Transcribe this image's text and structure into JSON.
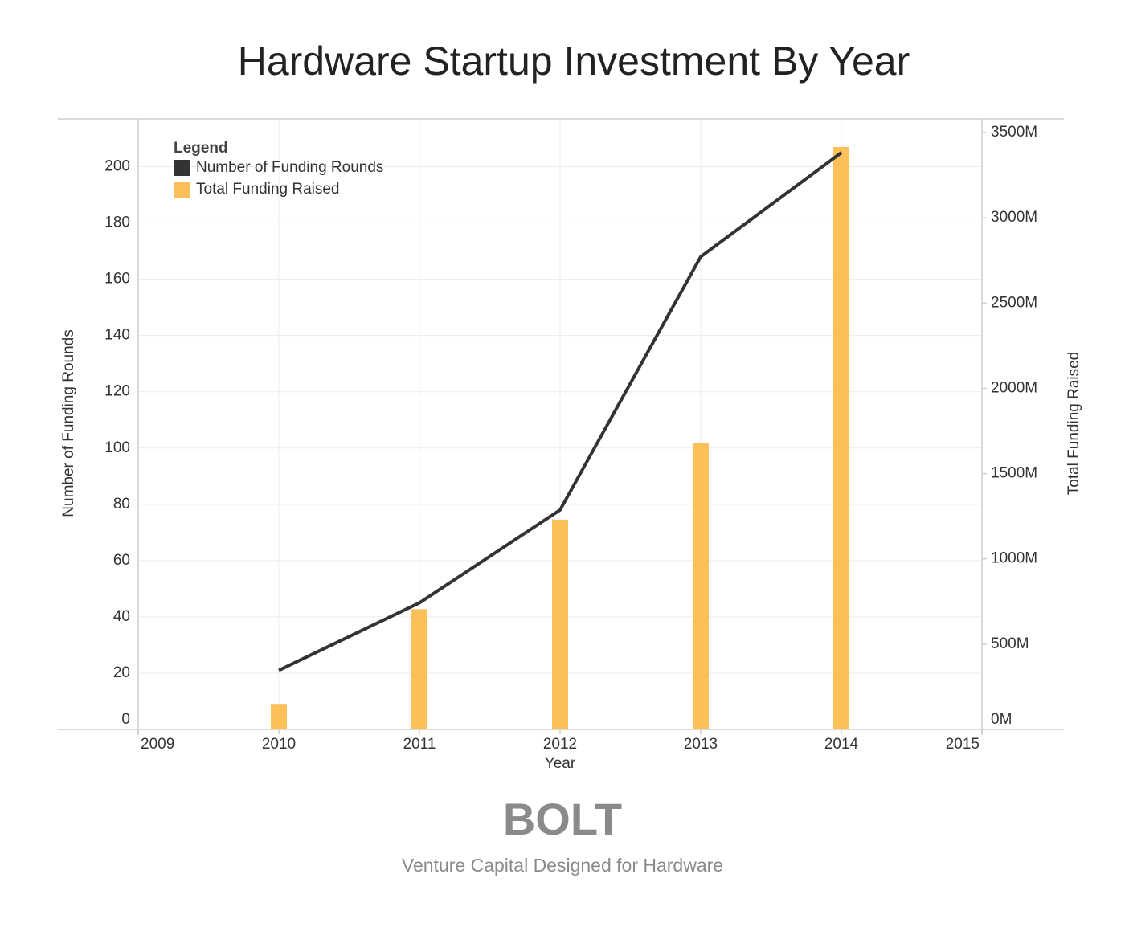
{
  "chart_data": {
    "type": "combo",
    "title": "Hardware Startup Investment By Year",
    "x_label": "Year",
    "y_label": "Number of Funding Rounds",
    "y2_label": "Total Funding Raised",
    "legend_title": "Legend",
    "legend": "top-left",
    "grid": true,
    "x": [
      2010,
      2011,
      2012,
      2013,
      2014
    ],
    "xlim": [
      2009,
      2015
    ],
    "xticks": [
      2009,
      2010,
      2011,
      2012,
      2013,
      2014,
      2015
    ],
    "ylim": [
      0,
      217
    ],
    "yticks": [
      0,
      20,
      40,
      60,
      80,
      100,
      120,
      140,
      160,
      180,
      200
    ],
    "y2lim": [
      0,
      3580
    ],
    "y2ticks": [
      {
        "value": 0,
        "label": "0M"
      },
      {
        "value": 500,
        "label": "500M"
      },
      {
        "value": 1000,
        "label": "1000M"
      },
      {
        "value": 1500,
        "label": "1500M"
      },
      {
        "value": 2000,
        "label": "2000M"
      },
      {
        "value": 2500,
        "label": "2500M"
      },
      {
        "value": 3000,
        "label": "3000M"
      },
      {
        "value": 3500,
        "label": "3500M"
      }
    ],
    "series": [
      {
        "name": "Number of Funding Rounds",
        "type": "line",
        "color": "#333333",
        "values": [
          21,
          45,
          78,
          168,
          205
        ]
      },
      {
        "name": "Total Funding Raised",
        "type": "bar",
        "axis": "y2",
        "color": "#fdbf57",
        "values": [
          145,
          705,
          1230,
          1680,
          3415
        ]
      }
    ]
  },
  "footer": {
    "logo": "BOLT",
    "tagline": "Venture Capital Designed for Hardware"
  }
}
